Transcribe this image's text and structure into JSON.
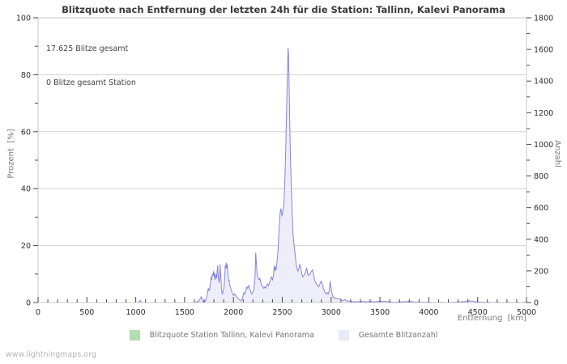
{
  "header": {
    "title": "Blitzquote nach Entfernung der letzten 24h für die Station: Tallinn, Kalevi Panorama"
  },
  "annotation": {
    "line1": "17.625 Blitze gesamt",
    "line2": "0 Blitze gesamt Station"
  },
  "watermark": "www.lightningmaps.org",
  "legend": {
    "items": [
      {
        "label": "Blitzquote Station Tallinn, Kalevi Panorama",
        "color": "#b2deb2"
      },
      {
        "label": "Gesamte Blitzanzahl",
        "color": "#e9e9f8"
      }
    ]
  },
  "chart_data": {
    "type": "area",
    "title": "Blitzquote nach Entfernung der letzten 24h für die Station: Tallinn, Kalevi Panorama",
    "xlabel": "Entfernung  [km]",
    "ylabel_left": "Prozent  [%]",
    "ylabel_right": "Anzahl",
    "xlim": [
      0,
      5000
    ],
    "ylim_left": [
      0,
      100
    ],
    "ylim_right": [
      0,
      1800
    ],
    "x_ticks": [
      0,
      500,
      1000,
      1500,
      2000,
      2500,
      3000,
      3500,
      4000,
      4500,
      5000
    ],
    "y_ticks_left": [
      0,
      20,
      40,
      60,
      80,
      100
    ],
    "y_ticks_right": [
      0,
      200,
      400,
      600,
      800,
      1000,
      1200,
      1400,
      1600,
      1800
    ],
    "x_minor_step": 100,
    "y_minor_left_step": 10,
    "y_minor_right_step": 100,
    "grid": "horizontal at left-axis major ticks",
    "legend_position": "bottom-center",
    "style": {
      "grid_color": "#d0d0d0",
      "frame_color": "#c9c9c9",
      "tick_color": "#4a4a4a",
      "area_fill": "#eeeefa",
      "area_line": "#8585da",
      "station_line": "#b2deb2"
    },
    "series": [
      {
        "name": "Blitzquote Station Tallinn, Kalevi Panorama",
        "axis": "left",
        "unit": "%",
        "color": "#b2deb2",
        "fill": null,
        "points": [
          [
            0,
            0
          ],
          [
            5000,
            0
          ]
        ]
      },
      {
        "name": "Gesamte Blitzanzahl",
        "axis": "right",
        "unit": "Blitze",
        "color": "#8585da",
        "fill": "#eeeefa",
        "points": [
          [
            0,
            0
          ],
          [
            500,
            0
          ],
          [
            1000,
            0
          ],
          [
            1030,
            0
          ],
          [
            1045,
            14
          ],
          [
            1062,
            0
          ],
          [
            1600,
            0
          ],
          [
            1648,
            9
          ],
          [
            1662,
            27
          ],
          [
            1672,
            36
          ],
          [
            1685,
            9
          ],
          [
            1700,
            5
          ],
          [
            1715,
            11
          ],
          [
            1730,
            45
          ],
          [
            1742,
            90
          ],
          [
            1752,
            72
          ],
          [
            1762,
            108
          ],
          [
            1772,
            162
          ],
          [
            1778,
            144
          ],
          [
            1784,
            180
          ],
          [
            1790,
            171
          ],
          [
            1796,
            198
          ],
          [
            1801,
            162
          ],
          [
            1806,
            189
          ],
          [
            1812,
            144
          ],
          [
            1818,
            162
          ],
          [
            1823,
            180
          ],
          [
            1828,
            153
          ],
          [
            1833,
            198
          ],
          [
            1838,
            234
          ],
          [
            1843,
            180
          ],
          [
            1848,
            144
          ],
          [
            1853,
            126
          ],
          [
            1858,
            153
          ],
          [
            1862,
            243
          ],
          [
            1867,
            198
          ],
          [
            1872,
            153
          ],
          [
            1877,
            90
          ],
          [
            1882,
            63
          ],
          [
            1888,
            54
          ],
          [
            1894,
            72
          ],
          [
            1902,
            90
          ],
          [
            1910,
            144
          ],
          [
            1916,
            234
          ],
          [
            1921,
            216
          ],
          [
            1926,
            252
          ],
          [
            1931,
            216
          ],
          [
            1936,
            243
          ],
          [
            1941,
            198
          ],
          [
            1946,
            162
          ],
          [
            1951,
            135
          ],
          [
            1956,
            144
          ],
          [
            1962,
            108
          ],
          [
            1972,
            90
          ],
          [
            1982,
            72
          ],
          [
            1992,
            54
          ],
          [
            2002,
            45
          ],
          [
            2012,
            54
          ],
          [
            2022,
            45
          ],
          [
            2032,
            36
          ],
          [
            2045,
            27
          ],
          [
            2060,
            18
          ],
          [
            2072,
            11
          ],
          [
            2085,
            18
          ],
          [
            2096,
            36
          ],
          [
            2106,
            63
          ],
          [
            2116,
            54
          ],
          [
            2126,
            72
          ],
          [
            2136,
            99
          ],
          [
            2146,
            90
          ],
          [
            2156,
            108
          ],
          [
            2166,
            90
          ],
          [
            2176,
            72
          ],
          [
            2186,
            54
          ],
          [
            2196,
            63
          ],
          [
            2206,
            72
          ],
          [
            2214,
            108
          ],
          [
            2221,
            162
          ],
          [
            2228,
            315
          ],
          [
            2235,
            252
          ],
          [
            2242,
            180
          ],
          [
            2250,
            153
          ],
          [
            2260,
            144
          ],
          [
            2270,
            153
          ],
          [
            2280,
            126
          ],
          [
            2290,
            108
          ],
          [
            2300,
            99
          ],
          [
            2310,
            90
          ],
          [
            2320,
            99
          ],
          [
            2330,
            90
          ],
          [
            2340,
            108
          ],
          [
            2350,
            117
          ],
          [
            2360,
            108
          ],
          [
            2370,
            126
          ],
          [
            2380,
            144
          ],
          [
            2390,
            162
          ],
          [
            2400,
            144
          ],
          [
            2410,
            171
          ],
          [
            2418,
            234
          ],
          [
            2425,
            198
          ],
          [
            2431,
            225
          ],
          [
            2437,
            207
          ],
          [
            2443,
            243
          ],
          [
            2451,
            288
          ],
          [
            2459,
            360
          ],
          [
            2468,
            468
          ],
          [
            2477,
            558
          ],
          [
            2485,
            594
          ],
          [
            2491,
            576
          ],
          [
            2497,
            549
          ],
          [
            2503,
            558
          ],
          [
            2509,
            594
          ],
          [
            2515,
            612
          ],
          [
            2521,
            684
          ],
          [
            2527,
            792
          ],
          [
            2532,
            900
          ],
          [
            2537,
            1026
          ],
          [
            2542,
            1170
          ],
          [
            2547,
            1296
          ],
          [
            2552,
            1440
          ],
          [
            2556,
            1548
          ],
          [
            2560,
            1611
          ],
          [
            2564,
            1566
          ],
          [
            2568,
            1440
          ],
          [
            2573,
            1260
          ],
          [
            2578,
            1080
          ],
          [
            2583,
            936
          ],
          [
            2588,
            828
          ],
          [
            2593,
            720
          ],
          [
            2598,
            630
          ],
          [
            2603,
            540
          ],
          [
            2608,
            468
          ],
          [
            2613,
            414
          ],
          [
            2619,
            369
          ],
          [
            2625,
            342
          ],
          [
            2631,
            306
          ],
          [
            2640,
            252
          ],
          [
            2650,
            216
          ],
          [
            2660,
            198
          ],
          [
            2670,
            216
          ],
          [
            2680,
            243
          ],
          [
            2690,
            216
          ],
          [
            2700,
            180
          ],
          [
            2710,
            162
          ],
          [
            2720,
            171
          ],
          [
            2730,
            180
          ],
          [
            2740,
            198
          ],
          [
            2750,
            216
          ],
          [
            2760,
            180
          ],
          [
            2770,
            171
          ],
          [
            2780,
            180
          ],
          [
            2790,
            189
          ],
          [
            2800,
            198
          ],
          [
            2810,
            207
          ],
          [
            2820,
            180
          ],
          [
            2830,
            144
          ],
          [
            2840,
            126
          ],
          [
            2850,
            117
          ],
          [
            2860,
            108
          ],
          [
            2870,
            99
          ],
          [
            2880,
            108
          ],
          [
            2890,
            126
          ],
          [
            2900,
            135
          ],
          [
            2910,
            117
          ],
          [
            2920,
            90
          ],
          [
            2930,
            72
          ],
          [
            2940,
            63
          ],
          [
            2950,
            54
          ],
          [
            2960,
            63
          ],
          [
            2970,
            54
          ],
          [
            2980,
            72
          ],
          [
            2990,
            135
          ],
          [
            3000,
            90
          ],
          [
            3010,
            54
          ],
          [
            3020,
            36
          ],
          [
            3032,
            27
          ],
          [
            3050,
            27
          ],
          [
            3070,
            22
          ],
          [
            3090,
            23
          ],
          [
            3105,
            18
          ],
          [
            3120,
            11
          ],
          [
            3140,
            18
          ],
          [
            3160,
            9
          ],
          [
            3180,
            9
          ],
          [
            3200,
            9
          ],
          [
            3230,
            5
          ],
          [
            3260,
            5
          ],
          [
            3300,
            5
          ],
          [
            3330,
            7
          ],
          [
            3360,
            4
          ],
          [
            3400,
            7
          ],
          [
            3440,
            4
          ],
          [
            3480,
            7
          ],
          [
            3505,
            9
          ],
          [
            3530,
            7
          ],
          [
            3560,
            7
          ],
          [
            3600,
            4
          ],
          [
            3650,
            2
          ],
          [
            3700,
            4
          ],
          [
            3750,
            5
          ],
          [
            3800,
            7
          ],
          [
            3850,
            4
          ],
          [
            3900,
            2
          ],
          [
            3950,
            2
          ],
          [
            4000,
            2
          ],
          [
            4060,
            0
          ],
          [
            4120,
            2
          ],
          [
            4180,
            0
          ],
          [
            4250,
            2
          ],
          [
            4320,
            4
          ],
          [
            4380,
            7
          ],
          [
            4410,
            11
          ],
          [
            4430,
            9
          ],
          [
            4450,
            9
          ],
          [
            4470,
            5
          ],
          [
            4500,
            4
          ],
          [
            4550,
            2
          ],
          [
            4600,
            2
          ],
          [
            4660,
            0
          ],
          [
            4700,
            2
          ],
          [
            4760,
            0
          ],
          [
            4800,
            2
          ],
          [
            4860,
            0
          ],
          [
            4900,
            2
          ],
          [
            4950,
            0
          ],
          [
            5000,
            4
          ]
        ]
      }
    ]
  }
}
